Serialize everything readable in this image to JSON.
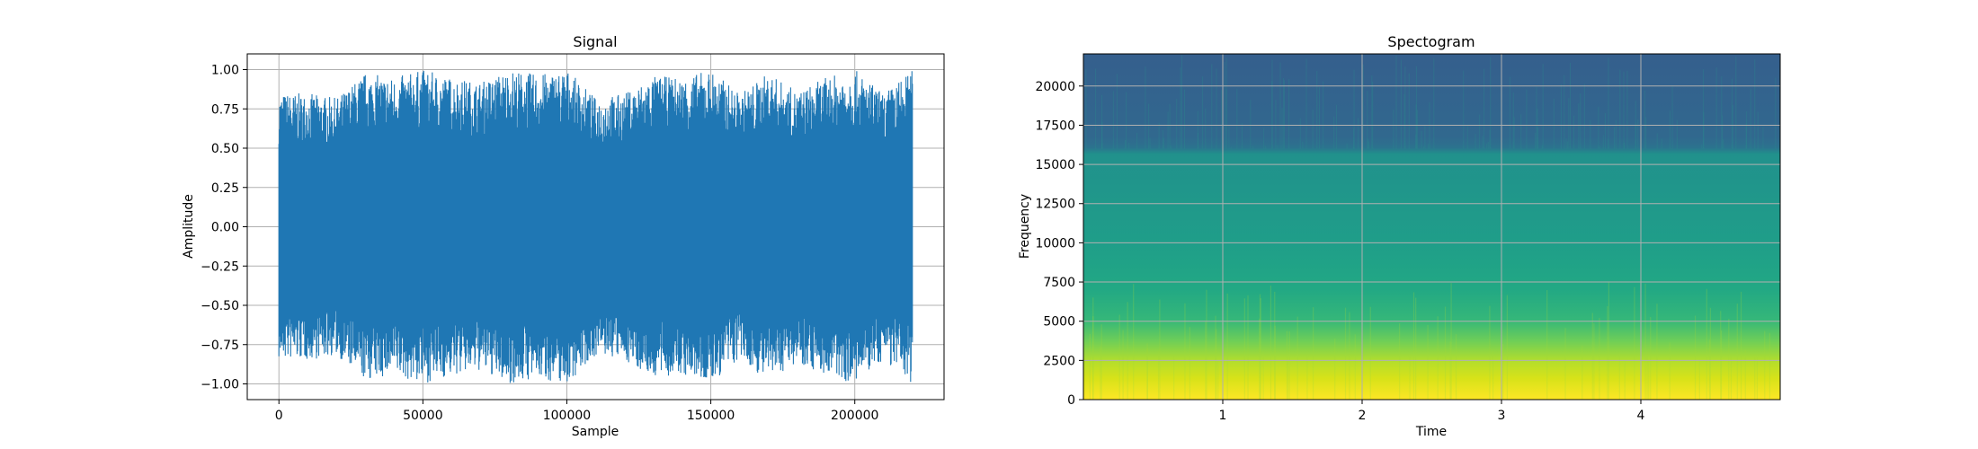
{
  "chart_data": [
    {
      "type": "line",
      "title": "Signal",
      "xlabel": "Sample",
      "ylabel": "Amplitude",
      "xlim": [
        -11000,
        231000
      ],
      "ylim": [
        -1.1,
        1.1
      ],
      "grid": true,
      "xticks": [
        0,
        50000,
        100000,
        150000,
        200000
      ],
      "xtick_labels": [
        "0",
        "50000",
        "100000",
        "150000",
        "200000"
      ],
      "yticks": [
        1.0,
        0.75,
        0.5,
        0.25,
        0.0,
        -0.25,
        -0.5,
        -0.75,
        -1.0
      ],
      "ytick_labels": [
        "1.00",
        "0.75",
        "0.50",
        "0.25",
        "0.00",
        "−0.25",
        "−0.50",
        "−0.75",
        "−1.00"
      ],
      "series": [
        {
          "color": "#1f77b4",
          "x_range": [
            0,
            220000
          ],
          "envelope": {
            "x": [
              0,
              10000,
              20000,
              30000,
              40000,
              50000,
              60000,
              70000,
              80000,
              90000,
              100000,
              110000,
              120000,
              130000,
              140000,
              150000,
              160000,
              170000,
              180000,
              190000,
              200000,
              210000,
              220000
            ],
            "upper": [
              0.85,
              0.85,
              0.82,
              0.98,
              0.95,
              1.0,
              0.95,
              0.92,
              1.0,
              0.97,
              1.0,
              0.82,
              0.85,
              0.96,
              0.95,
              1.0,
              0.85,
              0.98,
              0.86,
              0.95,
              1.0,
              0.85,
              1.0
            ],
            "lower": [
              -0.85,
              -0.85,
              -0.82,
              -0.98,
              -0.95,
              -1.0,
              -0.95,
              -0.92,
              -1.0,
              -0.97,
              -1.0,
              -0.82,
              -0.85,
              -0.96,
              -0.95,
              -1.0,
              -0.85,
              -0.98,
              -0.86,
              -0.95,
              -1.0,
              -0.85,
              -1.0
            ]
          }
        }
      ]
    },
    {
      "type": "heatmap",
      "title": "Spectogram",
      "xlabel": "Time",
      "ylabel": "Frequency",
      "xlim": [
        0,
        5.0
      ],
      "ylim": [
        0,
        22050
      ],
      "grid": true,
      "xticks": [
        1,
        2,
        3,
        4
      ],
      "xtick_labels": [
        "1",
        "2",
        "3",
        "4"
      ],
      "yticks": [
        0,
        2500,
        5000,
        7500,
        10000,
        12500,
        15000,
        17500,
        20000
      ],
      "ytick_labels": [
        "0",
        "2500",
        "5000",
        "7500",
        "10000",
        "12500",
        "15000",
        "17500",
        "20000"
      ],
      "colormap": "viridis",
      "frequency_bands": [
        {
          "from": 0,
          "to": 2500,
          "level": 0.95
        },
        {
          "from": 2500,
          "to": 5000,
          "level": 0.8
        },
        {
          "from": 5000,
          "to": 7500,
          "level": 0.65
        },
        {
          "from": 7500,
          "to": 10000,
          "level": 0.56
        },
        {
          "from": 10000,
          "to": 16000,
          "level": 0.52
        },
        {
          "from": 16000,
          "to": 22050,
          "level": 0.33
        }
      ]
    }
  ]
}
